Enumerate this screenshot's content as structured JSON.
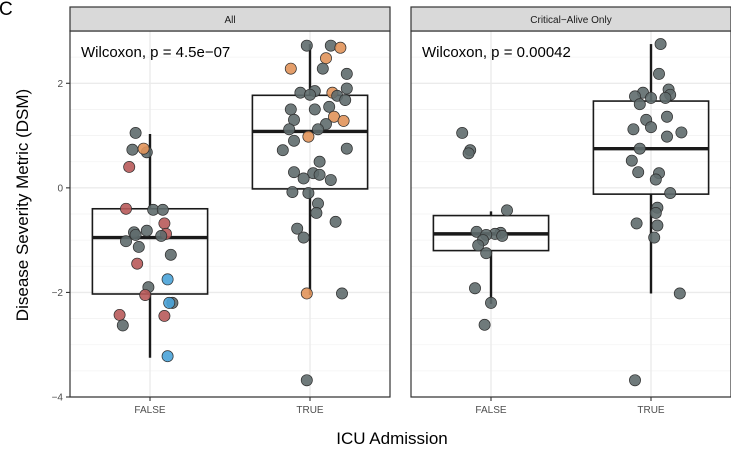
{
  "panel_letter": "C",
  "ylabel": "Disease Severity Metric (DSM)",
  "xlabel": "ICU Admission",
  "y_ticks": [
    "2",
    "0",
    "−2",
    "−4"
  ],
  "x_ticks": [
    "FALSE",
    "TRUE"
  ],
  "colors": {
    "strip_bg": "#d9d9d9",
    "panel_border": "#333333",
    "grid": "#ebebeb",
    "box_line": "#1a1a1a",
    "point_grey": "#5f6b6d",
    "point_red": "#b85a5a",
    "point_orange": "#e1935a",
    "point_blue": "#4aa3d8"
  },
  "chart_data": [
    {
      "type": "scatter",
      "facet_title": "All",
      "annotation": "Wilcoxon,  p = 4.5e−07",
      "xlabel": "ICU Admission",
      "ylabel": "Disease Severity Metric (DSM)",
      "ylim": [
        -4,
        3
      ],
      "categories": [
        "FALSE",
        "TRUE"
      ],
      "boxes": [
        {
          "category": "FALSE",
          "q1": -2.03,
          "median": -0.95,
          "q3": -0.4,
          "whisker_low": -3.25,
          "whisker_high": 1.03
        },
        {
          "category": "TRUE",
          "q1": -0.02,
          "median": 1.08,
          "q3": 1.77,
          "whisker_low": -2.05,
          "whisker_high": 2.75
        }
      ],
      "points": [
        {
          "x": "FALSE",
          "dx": -0.18,
          "y": 1.05,
          "c": "grey"
        },
        {
          "x": "FALSE",
          "dx": -0.22,
          "y": 0.73,
          "c": "grey"
        },
        {
          "x": "FALSE",
          "dx": -0.04,
          "y": 0.68,
          "c": "grey"
        },
        {
          "x": "FALSE",
          "dx": -0.08,
          "y": 0.75,
          "c": "orange"
        },
        {
          "x": "FALSE",
          "dx": -0.26,
          "y": 0.4,
          "c": "red"
        },
        {
          "x": "FALSE",
          "dx": -0.3,
          "y": -0.4,
          "c": "red"
        },
        {
          "x": "FALSE",
          "dx": 0.04,
          "y": -0.42,
          "c": "grey"
        },
        {
          "x": "FALSE",
          "dx": 0.16,
          "y": -0.42,
          "c": "grey"
        },
        {
          "x": "FALSE",
          "dx": 0.18,
          "y": -0.68,
          "c": "red"
        },
        {
          "x": "FALSE",
          "dx": -0.04,
          "y": -0.82,
          "c": "grey"
        },
        {
          "x": "FALSE",
          "dx": 0.2,
          "y": -0.88,
          "c": "red"
        },
        {
          "x": "FALSE",
          "dx": -0.2,
          "y": -0.85,
          "c": "grey"
        },
        {
          "x": "FALSE",
          "dx": -0.18,
          "y": -0.9,
          "c": "grey"
        },
        {
          "x": "FALSE",
          "dx": 0.14,
          "y": -0.92,
          "c": "grey"
        },
        {
          "x": "FALSE",
          "dx": -0.3,
          "y": -1.02,
          "c": "grey"
        },
        {
          "x": "FALSE",
          "dx": -0.14,
          "y": -1.13,
          "c": "grey"
        },
        {
          "x": "FALSE",
          "dx": 0.26,
          "y": -1.28,
          "c": "grey"
        },
        {
          "x": "FALSE",
          "dx": -0.16,
          "y": -1.45,
          "c": "red"
        },
        {
          "x": "FALSE",
          "dx": 0.22,
          "y": -1.75,
          "c": "blue"
        },
        {
          "x": "FALSE",
          "dx": -0.02,
          "y": -1.9,
          "c": "grey"
        },
        {
          "x": "FALSE",
          "dx": -0.06,
          "y": -2.05,
          "c": "red"
        },
        {
          "x": "FALSE",
          "dx": 0.28,
          "y": -2.2,
          "c": "grey"
        },
        {
          "x": "FALSE",
          "dx": 0.24,
          "y": -2.2,
          "c": "blue"
        },
        {
          "x": "FALSE",
          "dx": -0.38,
          "y": -2.43,
          "c": "red"
        },
        {
          "x": "FALSE",
          "dx": 0.18,
          "y": -2.45,
          "c": "red"
        },
        {
          "x": "FALSE",
          "dx": -0.34,
          "y": -2.63,
          "c": "grey"
        },
        {
          "x": "FALSE",
          "dx": 0.22,
          "y": -3.22,
          "c": "blue"
        },
        {
          "x": "TRUE",
          "dx": 0.26,
          "y": 2.72,
          "c": "grey"
        },
        {
          "x": "TRUE",
          "dx": -0.04,
          "y": 2.72,
          "c": "grey"
        },
        {
          "x": "TRUE",
          "dx": 0.38,
          "y": 2.68,
          "c": "orange"
        },
        {
          "x": "TRUE",
          "dx": 0.2,
          "y": 2.48,
          "c": "orange"
        },
        {
          "x": "TRUE",
          "dx": -0.24,
          "y": 2.28,
          "c": "orange"
        },
        {
          "x": "TRUE",
          "dx": 0.16,
          "y": 2.28,
          "c": "grey"
        },
        {
          "x": "TRUE",
          "dx": 0.46,
          "y": 2.18,
          "c": "grey"
        },
        {
          "x": "TRUE",
          "dx": 0.46,
          "y": 1.9,
          "c": "grey"
        },
        {
          "x": "TRUE",
          "dx": 0.06,
          "y": 1.85,
          "c": "grey"
        },
        {
          "x": "TRUE",
          "dx": -0.12,
          "y": 1.82,
          "c": "grey"
        },
        {
          "x": "TRUE",
          "dx": 0.28,
          "y": 1.82,
          "c": "orange"
        },
        {
          "x": "TRUE",
          "dx": 0.34,
          "y": 1.76,
          "c": "grey"
        },
        {
          "x": "TRUE",
          "dx": 0.0,
          "y": 1.78,
          "c": "grey"
        },
        {
          "x": "TRUE",
          "dx": 0.44,
          "y": 1.68,
          "c": "grey"
        },
        {
          "x": "TRUE",
          "dx": 0.24,
          "y": 1.55,
          "c": "grey"
        },
        {
          "x": "TRUE",
          "dx": 0.06,
          "y": 1.5,
          "c": "grey"
        },
        {
          "x": "TRUE",
          "dx": -0.24,
          "y": 1.5,
          "c": "grey"
        },
        {
          "x": "TRUE",
          "dx": 0.3,
          "y": 1.36,
          "c": "orange"
        },
        {
          "x": "TRUE",
          "dx": -0.2,
          "y": 1.3,
          "c": "grey"
        },
        {
          "x": "TRUE",
          "dx": 0.42,
          "y": 1.28,
          "c": "orange"
        },
        {
          "x": "TRUE",
          "dx": 0.2,
          "y": 1.22,
          "c": "grey"
        },
        {
          "x": "TRUE",
          "dx": 0.1,
          "y": 1.12,
          "c": "grey"
        },
        {
          "x": "TRUE",
          "dx": -0.26,
          "y": 1.12,
          "c": "grey"
        },
        {
          "x": "TRUE",
          "dx": -0.02,
          "y": 0.98,
          "c": "orange"
        },
        {
          "x": "TRUE",
          "dx": -0.2,
          "y": 0.9,
          "c": "grey"
        },
        {
          "x": "TRUE",
          "dx": 0.46,
          "y": 0.75,
          "c": "grey"
        },
        {
          "x": "TRUE",
          "dx": -0.34,
          "y": 0.72,
          "c": "grey"
        },
        {
          "x": "TRUE",
          "dx": 0.12,
          "y": 0.5,
          "c": "grey"
        },
        {
          "x": "TRUE",
          "dx": -0.2,
          "y": 0.3,
          "c": "grey"
        },
        {
          "x": "TRUE",
          "dx": 0.04,
          "y": 0.28,
          "c": "grey"
        },
        {
          "x": "TRUE",
          "dx": 0.12,
          "y": 0.25,
          "c": "grey"
        },
        {
          "x": "TRUE",
          "dx": -0.08,
          "y": 0.18,
          "c": "grey"
        },
        {
          "x": "TRUE",
          "dx": 0.26,
          "y": 0.15,
          "c": "grey"
        },
        {
          "x": "TRUE",
          "dx": -0.22,
          "y": -0.08,
          "c": "grey"
        },
        {
          "x": "TRUE",
          "dx": -0.02,
          "y": -0.1,
          "c": "grey"
        },
        {
          "x": "TRUE",
          "dx": 0.1,
          "y": -0.3,
          "c": "grey"
        },
        {
          "x": "TRUE",
          "dx": 0.08,
          "y": -0.48,
          "c": "grey"
        },
        {
          "x": "TRUE",
          "dx": 0.32,
          "y": -0.65,
          "c": "grey"
        },
        {
          "x": "TRUE",
          "dx": -0.16,
          "y": -0.78,
          "c": "grey"
        },
        {
          "x": "TRUE",
          "dx": -0.08,
          "y": -0.95,
          "c": "grey"
        },
        {
          "x": "TRUE",
          "dx": -0.04,
          "y": -2.02,
          "c": "orange"
        },
        {
          "x": "TRUE",
          "dx": 0.4,
          "y": -2.02,
          "c": "grey"
        },
        {
          "x": "TRUE",
          "dx": -0.04,
          "y": -3.68,
          "c": "grey"
        }
      ]
    },
    {
      "type": "scatter",
      "facet_title": "Critical−Alive Only",
      "annotation": "Wilcoxon,  p = 0.00042",
      "xlabel": "ICU Admission",
      "ylabel": "Disease Severity Metric (DSM)",
      "ylim": [
        -4,
        3
      ],
      "categories": [
        "FALSE",
        "TRUE"
      ],
      "boxes": [
        {
          "category": "FALSE",
          "q1": -1.2,
          "median": -0.88,
          "q3": -0.53,
          "whisker_low": -2.22,
          "whisker_high": -0.45
        },
        {
          "category": "TRUE",
          "q1": -0.12,
          "median": 0.75,
          "q3": 1.66,
          "whisker_low": -2.02,
          "whisker_high": 2.75
        }
      ],
      "points": [
        {
          "x": "FALSE",
          "dx": -0.36,
          "y": 1.05,
          "c": "grey"
        },
        {
          "x": "FALSE",
          "dx": -0.26,
          "y": 0.72,
          "c": "grey"
        },
        {
          "x": "FALSE",
          "dx": -0.28,
          "y": 0.66,
          "c": "grey"
        },
        {
          "x": "FALSE",
          "dx": 0.2,
          "y": -0.43,
          "c": "grey"
        },
        {
          "x": "FALSE",
          "dx": -0.18,
          "y": -0.84,
          "c": "grey"
        },
        {
          "x": "FALSE",
          "dx": 0.12,
          "y": -0.86,
          "c": "grey"
        },
        {
          "x": "FALSE",
          "dx": 0.05,
          "y": -0.88,
          "c": "grey"
        },
        {
          "x": "FALSE",
          "dx": -0.06,
          "y": -0.9,
          "c": "grey"
        },
        {
          "x": "FALSE",
          "dx": 0.14,
          "y": -0.92,
          "c": "grey"
        },
        {
          "x": "FALSE",
          "dx": -0.1,
          "y": -1.0,
          "c": "grey"
        },
        {
          "x": "FALSE",
          "dx": -0.16,
          "y": -1.1,
          "c": "grey"
        },
        {
          "x": "FALSE",
          "dx": -0.06,
          "y": -1.25,
          "c": "grey"
        },
        {
          "x": "FALSE",
          "dx": -0.2,
          "y": -1.92,
          "c": "grey"
        },
        {
          "x": "FALSE",
          "dx": 0.0,
          "y": -2.2,
          "c": "grey"
        },
        {
          "x": "FALSE",
          "dx": -0.08,
          "y": -2.62,
          "c": "grey"
        },
        {
          "x": "TRUE",
          "dx": 0.12,
          "y": 2.75,
          "c": "grey"
        },
        {
          "x": "TRUE",
          "dx": 0.1,
          "y": 2.18,
          "c": "grey"
        },
        {
          "x": "TRUE",
          "dx": 0.22,
          "y": 1.88,
          "c": "grey"
        },
        {
          "x": "TRUE",
          "dx": -0.1,
          "y": 1.82,
          "c": "grey"
        },
        {
          "x": "TRUE",
          "dx": 0.24,
          "y": 1.78,
          "c": "grey"
        },
        {
          "x": "TRUE",
          "dx": 0.18,
          "y": 1.72,
          "c": "grey"
        },
        {
          "x": "TRUE",
          "dx": 0.0,
          "y": 1.72,
          "c": "grey"
        },
        {
          "x": "TRUE",
          "dx": -0.2,
          "y": 1.75,
          "c": "grey"
        },
        {
          "x": "TRUE",
          "dx": -0.14,
          "y": 1.6,
          "c": "grey"
        },
        {
          "x": "TRUE",
          "dx": 0.2,
          "y": 1.36,
          "c": "grey"
        },
        {
          "x": "TRUE",
          "dx": -0.06,
          "y": 1.3,
          "c": "grey"
        },
        {
          "x": "TRUE",
          "dx": 0.0,
          "y": 1.16,
          "c": "grey"
        },
        {
          "x": "TRUE",
          "dx": -0.22,
          "y": 1.12,
          "c": "grey"
        },
        {
          "x": "TRUE",
          "dx": 0.38,
          "y": 1.06,
          "c": "grey"
        },
        {
          "x": "TRUE",
          "dx": 0.2,
          "y": 0.98,
          "c": "grey"
        },
        {
          "x": "TRUE",
          "dx": -0.14,
          "y": 0.75,
          "c": "grey"
        },
        {
          "x": "TRUE",
          "dx": -0.24,
          "y": 0.52,
          "c": "grey"
        },
        {
          "x": "TRUE",
          "dx": -0.16,
          "y": 0.3,
          "c": "grey"
        },
        {
          "x": "TRUE",
          "dx": 0.1,
          "y": 0.28,
          "c": "grey"
        },
        {
          "x": "TRUE",
          "dx": 0.06,
          "y": 0.16,
          "c": "grey"
        },
        {
          "x": "TRUE",
          "dx": 0.24,
          "y": -0.1,
          "c": "grey"
        },
        {
          "x": "TRUE",
          "dx": 0.08,
          "y": -0.38,
          "c": "grey"
        },
        {
          "x": "TRUE",
          "dx": 0.06,
          "y": -0.48,
          "c": "grey"
        },
        {
          "x": "TRUE",
          "dx": -0.18,
          "y": -0.68,
          "c": "grey"
        },
        {
          "x": "TRUE",
          "dx": 0.08,
          "y": -0.72,
          "c": "grey"
        },
        {
          "x": "TRUE",
          "dx": 0.04,
          "y": -0.95,
          "c": "grey"
        },
        {
          "x": "TRUE",
          "dx": 0.36,
          "y": -2.02,
          "c": "grey"
        },
        {
          "x": "TRUE",
          "dx": -0.2,
          "y": -3.68,
          "c": "grey"
        }
      ]
    }
  ]
}
